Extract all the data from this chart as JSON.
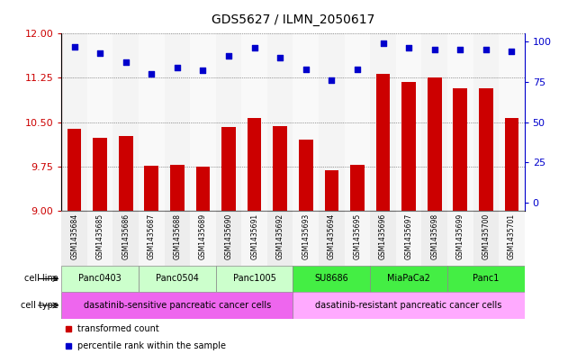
{
  "title": "GDS5627 / ILMN_2050617",
  "samples": [
    "GSM1435684",
    "GSM1435685",
    "GSM1435686",
    "GSM1435687",
    "GSM1435688",
    "GSM1435689",
    "GSM1435690",
    "GSM1435691",
    "GSM1435692",
    "GSM1435693",
    "GSM1435694",
    "GSM1435695",
    "GSM1435696",
    "GSM1435697",
    "GSM1435698",
    "GSM1435699",
    "GSM1435700",
    "GSM1435701"
  ],
  "bar_values": [
    10.38,
    10.24,
    10.27,
    9.76,
    9.77,
    9.74,
    10.42,
    10.57,
    10.44,
    10.21,
    9.68,
    9.78,
    11.32,
    11.18,
    11.25,
    11.08,
    11.07,
    10.57
  ],
  "dot_values": [
    97,
    93,
    87,
    80,
    84,
    82,
    91,
    96,
    90,
    83,
    76,
    83,
    99,
    96,
    95,
    95,
    95,
    94
  ],
  "y_min": 9.0,
  "y_max": 12.0,
  "y_ticks": [
    9,
    9.75,
    10.5,
    11.25,
    12
  ],
  "y2_ticks": [
    0,
    25,
    50,
    75,
    100
  ],
  "bar_color": "#cc0000",
  "dot_color": "#0000cc",
  "cell_lines": [
    {
      "label": "Panc0403",
      "start": 0,
      "end": 2,
      "color": "#ccffcc"
    },
    {
      "label": "Panc0504",
      "start": 3,
      "end": 5,
      "color": "#ccffcc"
    },
    {
      "label": "Panc1005",
      "start": 6,
      "end": 8,
      "color": "#ccffcc"
    },
    {
      "label": "SU8686",
      "start": 9,
      "end": 11,
      "color": "#44ee44"
    },
    {
      "label": "MiaPaCa2",
      "start": 12,
      "end": 14,
      "color": "#44ee44"
    },
    {
      "label": "Panc1",
      "start": 15,
      "end": 17,
      "color": "#44ee44"
    }
  ],
  "cell_types": [
    {
      "label": "dasatinib-sensitive pancreatic cancer cells",
      "start": 0,
      "end": 8,
      "color": "#ee66ee"
    },
    {
      "label": "dasatinib-resistant pancreatic cancer cells",
      "start": 9,
      "end": 17,
      "color": "#ffaaff"
    }
  ],
  "grid_color": "#000000",
  "bg_color": "#ffffff",
  "tick_color_left": "#cc0000",
  "tick_color_right": "#0000cc",
  "left_label": "cell line",
  "right_label": "cell type",
  "legend_bar_label": "transformed count",
  "legend_dot_label": "percentile rank within the sample"
}
